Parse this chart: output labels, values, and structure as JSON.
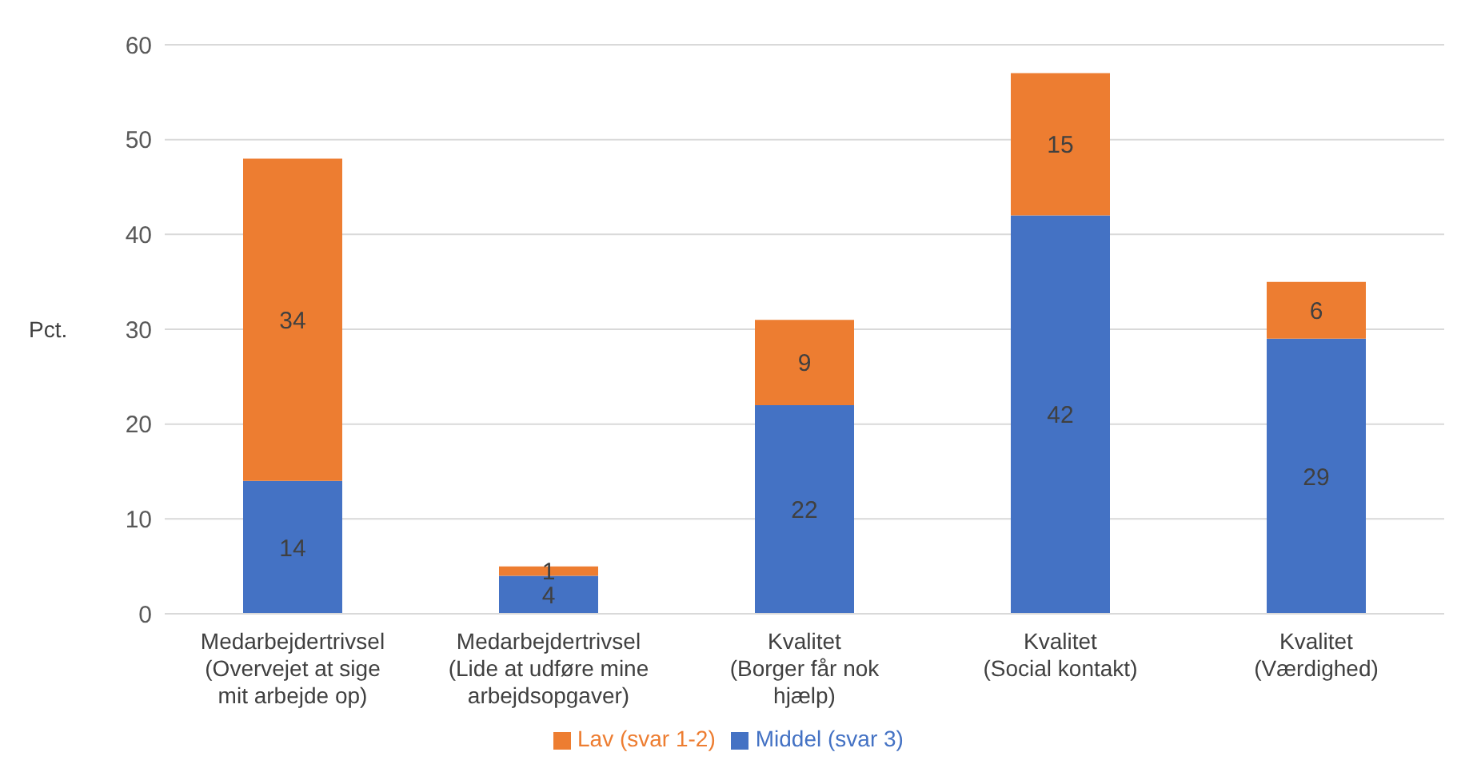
{
  "chart_data": {
    "type": "bar",
    "stacked": true,
    "ylabel": "Pct.",
    "categories": [
      "Medarbejdertrivsel\n(Overvejet at sige\nmit arbejde op)",
      "Medarbejdertrivsel\n(Lide at udføre mine\narbejdsopgaver)",
      "Kvalitet\n(Borger får nok\nhjælp)",
      "Kvalitet\n(Social kontakt)",
      "Kvalitet\n(Værdighed)"
    ],
    "series": [
      {
        "name": "Middel (svar 3)",
        "color": "#4472c4",
        "values": [
          14,
          4,
          22,
          42,
          29
        ]
      },
      {
        "name": "Lav (svar 1-2)",
        "color": "#ed7d31",
        "values": [
          34,
          1,
          9,
          15,
          6
        ]
      }
    ],
    "ylim": [
      0,
      60
    ],
    "yticks": [
      0,
      10,
      20,
      30,
      40,
      50,
      60
    ],
    "grid": "y",
    "legend": "bottom",
    "data_labels": true
  }
}
